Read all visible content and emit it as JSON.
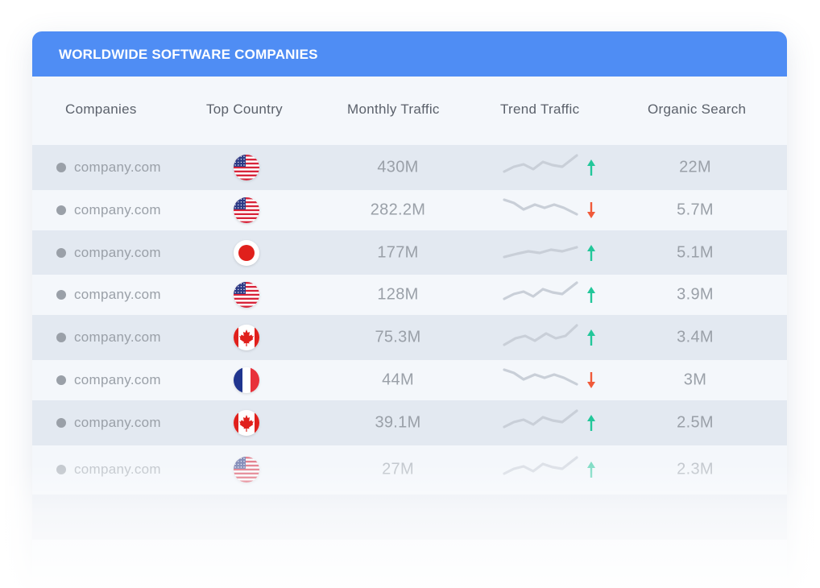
{
  "card": {
    "title": "WORLDWIDE SOFTWARE COMPANIES"
  },
  "columns": {
    "companies": "Companies",
    "top_country": "Top Country",
    "monthly_traffic": "Monthly Traffic",
    "trend_traffic": "Trend Traffic",
    "organic_search": "Organic Search"
  },
  "colors": {
    "header_blue": "#4f8df4",
    "trend_up": "#22c79a",
    "trend_down": "#f05a3a",
    "text_muted": "#9aa0a8"
  },
  "rows": [
    {
      "company": "company.com",
      "country": "us-flag-icon",
      "traffic": "430M",
      "trend": "up",
      "organic": "22M"
    },
    {
      "company": "company.com",
      "country": "us-flag-icon",
      "traffic": "282.2M",
      "trend": "down",
      "organic": "5.7M"
    },
    {
      "company": "company.com",
      "country": "japan-flag-icon",
      "traffic": "177M",
      "trend": "up",
      "organic": "5.1M"
    },
    {
      "company": "company.com",
      "country": "us-flag-icon",
      "traffic": "128M",
      "trend": "up",
      "organic": "3.9M"
    },
    {
      "company": "company.com",
      "country": "canada-flag-icon",
      "traffic": "75.3M",
      "trend": "up",
      "organic": "3.4M"
    },
    {
      "company": "company.com",
      "country": "france-flag-icon",
      "traffic": "44M",
      "trend": "down",
      "organic": "3M"
    },
    {
      "company": "company.com",
      "country": "canada-flag-icon",
      "traffic": "39.1M",
      "trend": "up",
      "organic": "2.5M"
    },
    {
      "company": "company.com",
      "country": "us-flag-icon",
      "traffic": "27M",
      "trend": "up",
      "organic": "2.3M"
    }
  ]
}
